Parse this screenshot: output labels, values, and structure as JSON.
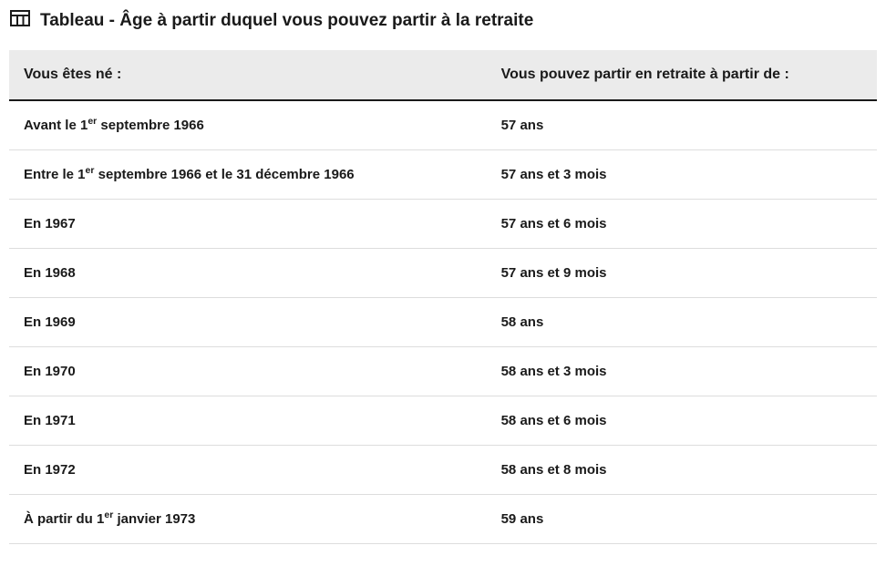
{
  "header": {
    "title": "Tableau - Âge à partir duquel vous pouvez partir à la retraite"
  },
  "table": {
    "columns": [
      "Vous êtes né :",
      "Vous pouvez partir en retraite à partir de :"
    ],
    "rows": [
      {
        "birth_html": "Avant le 1<sup>er</sup> septembre 1966",
        "age": "57 ans"
      },
      {
        "birth_html": "Entre le 1<sup>er</sup> septembre 1966 et le 31 décembre 1966",
        "age": "57 ans et 3 mois"
      },
      {
        "birth_html": "En 1967",
        "age": "57 ans et 6 mois"
      },
      {
        "birth_html": "En 1968",
        "age": "57 ans et 9 mois"
      },
      {
        "birth_html": "En 1969",
        "age": "58 ans"
      },
      {
        "birth_html": "En 1970",
        "age": "58 ans et 3 mois"
      },
      {
        "birth_html": "En 1971",
        "age": "58 ans et 6 mois"
      },
      {
        "birth_html": "En 1972",
        "age": "58 ans et 8 mois"
      },
      {
        "birth_html": "À partir du 1<sup>er</sup> janvier 1973",
        "age": "59 ans"
      }
    ]
  },
  "styling": {
    "header_bg": "#ebebeb",
    "header_border_bottom": "#1a1a1a",
    "row_border": "#dddddd",
    "text_color": "#1a1a1a",
    "background": "#ffffff",
    "title_fontsize": 19,
    "th_fontsize": 16,
    "td_fontsize": 15,
    "col_widths_pct": [
      55,
      45
    ]
  }
}
